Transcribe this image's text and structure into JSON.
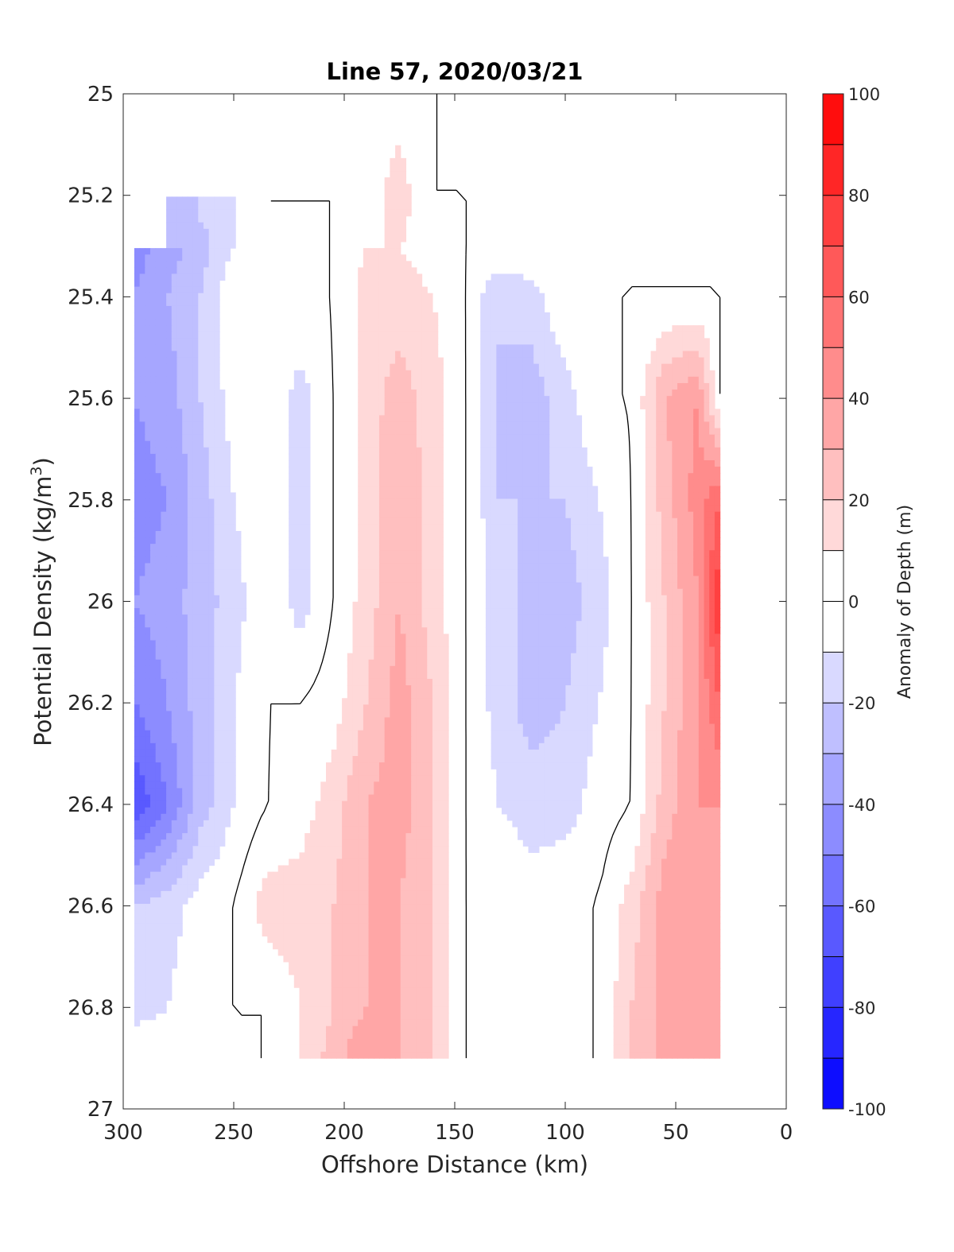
{
  "chart_data": {
    "type": "contour",
    "title": "Line 57, 2020/03/21",
    "xlabel": "Offshore Distance (km)",
    "ylabel": "Potential Density (kg/m",
    "ylabel_sup": "3",
    "ylabel_close": ")",
    "xlim": [
      300,
      0
    ],
    "ylim": [
      25,
      27
    ],
    "x_reversed": true,
    "y_reversed": true,
    "xticks": [
      300,
      250,
      200,
      150,
      100,
      50,
      0
    ],
    "xtick_labels": [
      "300",
      "250",
      "200",
      "150",
      "100",
      "50",
      "0"
    ],
    "yticks": [
      25,
      25.2,
      25.4,
      25.6,
      25.8,
      26,
      26.2,
      26.4,
      26.6,
      26.8,
      27
    ],
    "ytick_labels": [
      "25",
      "25.2",
      "25.4",
      "25.6",
      "25.8",
      "26",
      "26.2",
      "26.4",
      "26.6",
      "26.8",
      "27"
    ],
    "colorbar": {
      "label": "Anomaly of Depth (m)",
      "range": [
        -100,
        100
      ],
      "step": 10,
      "ticks": [
        100,
        80,
        60,
        40,
        20,
        0,
        -20,
        -40,
        -60,
        -80,
        -100
      ],
      "tick_labels": [
        "100",
        "80",
        "60",
        "40",
        "20",
        "0",
        "-20",
        "-40",
        "-60",
        "-80",
        "-100"
      ],
      "colors_top_to_bottom": [
        "#ff0000",
        "#ff1a1a",
        "#ff3333",
        "#ff4d4d",
        "#ff6666",
        "#ff8080",
        "#ff9999",
        "#ffb3b3",
        "#ffcccc",
        "#ffe6e6",
        "#ffffff",
        "#ffffff",
        "#e6e6ff",
        "#ccccff",
        "#b3b3ff",
        "#9999ff",
        "#8080ff",
        "#6666ff",
        "#4d4dff",
        "#3333ff",
        "#1a1aff",
        "#0000ff"
      ]
    },
    "anomaly_field": {
      "x_km": [
        295,
        280,
        265,
        250,
        235,
        220,
        205,
        190,
        175,
        160,
        145,
        130,
        115,
        100,
        85,
        70,
        55,
        40,
        30
      ],
      "density": [
        25.0,
        25.2,
        25.3,
        25.4,
        25.6,
        25.8,
        26.0,
        26.2,
        26.4,
        26.6,
        26.8,
        26.9
      ],
      "depth_anomaly_m": [
        [
          null,
          null,
          null,
          null,
          0,
          10,
          0,
          5,
          5,
          0,
          0,
          0,
          0,
          0,
          0,
          0,
          0,
          0,
          0
        ],
        [
          null,
          null,
          -15,
          -10,
          null,
          0,
          0,
          5,
          15,
          0,
          0,
          0,
          0,
          0,
          0,
          0,
          0,
          0,
          0
        ],
        [
          -45,
          -35,
          -25,
          -10,
          0,
          0,
          0,
          10,
          10,
          5,
          0,
          0,
          0,
          0,
          0,
          0,
          0,
          0,
          0
        ],
        [
          -40,
          -30,
          -20,
          0,
          0,
          0,
          0,
          15,
          15,
          10,
          0,
          -20,
          -15,
          0,
          0,
          0,
          0,
          0,
          0
        ],
        [
          -40,
          -35,
          -20,
          -5,
          0,
          -15,
          0,
          15,
          25,
          15,
          0,
          -20,
          -25,
          -15,
          0,
          0,
          30,
          40,
          0
        ],
        [
          -45,
          -40,
          -25,
          -10,
          0,
          -15,
          0,
          15,
          30,
          15,
          0,
          -20,
          -20,
          -20,
          -10,
          0,
          25,
          45,
          60
        ],
        [
          -40,
          -35,
          -25,
          -15,
          0,
          -15,
          0,
          15,
          30,
          15,
          0,
          -15,
          -25,
          -25,
          -15,
          0,
          20,
          40,
          80
        ],
        [
          -50,
          -40,
          -25,
          -10,
          0,
          0,
          5,
          20,
          35,
          20,
          0,
          -15,
          -25,
          -20,
          -10,
          0,
          20,
          40,
          60
        ],
        [
          -70,
          -50,
          -25,
          -10,
          0,
          5,
          15,
          30,
          35,
          20,
          0,
          -10,
          -15,
          -15,
          -5,
          0,
          25,
          40,
          40
        ],
        [
          -20,
          -15,
          -5,
          0,
          15,
          15,
          20,
          30,
          30,
          20,
          0,
          0,
          -5,
          0,
          0,
          15,
          35,
          40,
          35
        ],
        [
          -15,
          -10,
          0,
          0,
          0,
          10,
          20,
          30,
          30,
          20,
          0,
          0,
          0,
          0,
          0,
          20,
          35,
          35,
          30
        ],
        [
          0,
          0,
          0,
          0,
          0,
          10,
          25,
          40,
          30,
          20,
          0,
          0,
          0,
          0,
          0,
          20,
          35,
          35,
          30
        ]
      ]
    }
  }
}
